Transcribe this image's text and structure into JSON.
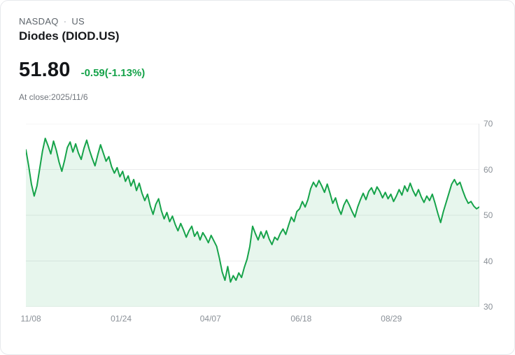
{
  "header": {
    "exchange": "NASDAQ",
    "separator": "·",
    "region": "US",
    "title": "Diodes (DIOD.US)"
  },
  "quote": {
    "price": "51.80",
    "change": "-0.59(-1.13%)",
    "as_of": "At close:2025/11/6"
  },
  "colors": {
    "line": "#16a34a",
    "fill": "rgba(22,163,74,0.10)",
    "change_text": "#16a34a",
    "grid": "#ececee",
    "axis_border": "#e4e6e8",
    "axis_text": "#8a9097"
  },
  "chart_data": {
    "type": "line",
    "title": "Diodes (DIOD.US) 1-year price",
    "xlabel": "",
    "ylabel": "",
    "ylim": [
      30,
      70
    ],
    "y_ticks": [
      30,
      40,
      50,
      60,
      70
    ],
    "grid": true,
    "legend": "none",
    "x_tick_labels": [
      "11/08",
      "01/24",
      "04/07",
      "06/18",
      "08/29"
    ],
    "x_tick_positions": [
      0.011,
      0.21,
      0.407,
      0.607,
      0.806
    ],
    "values": [
      64.3,
      60.8,
      56.8,
      54.2,
      56.4,
      60.2,
      64.0,
      66.8,
      65.2,
      63.4,
      66.2,
      64.2,
      61.6,
      59.6,
      62.0,
      64.8,
      66.0,
      63.8,
      65.6,
      63.6,
      62.2,
      64.6,
      66.4,
      64.2,
      62.4,
      60.8,
      63.2,
      65.4,
      63.6,
      61.8,
      62.8,
      60.6,
      59.2,
      60.4,
      58.4,
      59.6,
      57.4,
      58.6,
      56.4,
      57.8,
      55.4,
      57.0,
      54.8,
      53.2,
      54.6,
      52.0,
      50.2,
      52.4,
      53.6,
      51.0,
      49.2,
      50.6,
      48.6,
      49.8,
      48.0,
      46.6,
      48.2,
      46.8,
      45.2,
      46.6,
      47.6,
      45.4,
      46.4,
      44.6,
      46.2,
      45.2,
      44.0,
      45.6,
      44.4,
      43.2,
      40.6,
      37.6,
      35.8,
      38.8,
      35.4,
      36.8,
      35.8,
      37.4,
      36.4,
      38.6,
      40.4,
      43.2,
      47.6,
      46.0,
      44.6,
      46.4,
      45.0,
      46.6,
      44.8,
      43.6,
      45.2,
      44.6,
      46.0,
      47.0,
      45.8,
      47.8,
      49.6,
      48.6,
      50.8,
      51.4,
      53.0,
      51.8,
      53.4,
      55.8,
      57.2,
      56.2,
      57.6,
      56.4,
      55.0,
      56.8,
      54.8,
      52.6,
      53.8,
      51.6,
      50.2,
      52.2,
      53.4,
      52.2,
      50.8,
      49.6,
      51.8,
      53.4,
      54.8,
      53.4,
      55.2,
      56.0,
      54.6,
      56.2,
      55.2,
      53.8,
      55.0,
      53.6,
      54.6,
      53.0,
      54.2,
      55.6,
      54.4,
      56.4,
      55.2,
      57.0,
      55.4,
      54.2,
      55.6,
      54.0,
      52.8,
      54.2,
      53.2,
      54.6,
      52.6,
      50.4,
      48.4,
      50.8,
      52.8,
      54.8,
      56.8,
      57.8,
      56.6,
      57.2,
      55.4,
      53.8,
      52.6,
      53.0,
      52.0,
      51.4,
      51.8
    ]
  }
}
